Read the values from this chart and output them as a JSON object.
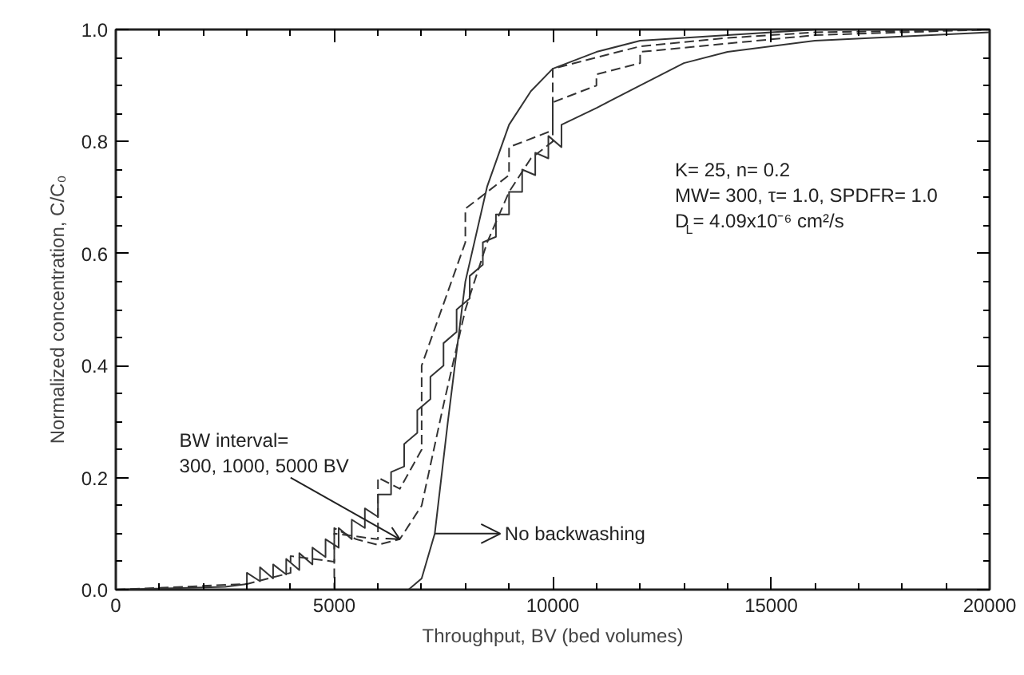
{
  "chart_data": {
    "type": "line",
    "xlabel": "Throughput, BV (bed volumes)",
    "ylabel": "Normalized concentration, C/C₀",
    "xlim": [
      0,
      20000
    ],
    "ylim": [
      0,
      1.0
    ],
    "xticks": [
      0,
      5000,
      10000,
      15000,
      20000
    ],
    "yticks": [
      {
        "value": 0,
        "label": "0.0"
      },
      {
        "value": 0.2,
        "label": "0.2"
      },
      {
        "value": 0.4,
        "label": "0.4"
      },
      {
        "value": 0.6,
        "label": "0.6"
      },
      {
        "value": 0.8,
        "label": "0.8"
      },
      {
        "value": 1.0,
        "label": "1.0"
      }
    ],
    "grid": false,
    "series": [
      {
        "color": "#333333",
        "line_style": "solid",
        "x": [
          0,
          6700,
          7000,
          7300,
          7600,
          8000,
          8500,
          9000,
          9500,
          10000,
          11000,
          12000,
          14000,
          16000,
          20000
        ],
        "values": [
          0,
          0,
          0.02,
          0.1,
          0.3,
          0.55,
          0.72,
          0.83,
          0.89,
          0.93,
          0.96,
          0.98,
          0.99,
          1.0,
          1.0
        ]
      },
      {
        "color": "#333333",
        "line_style": "dashed",
        "x": [
          0,
          5000,
          5000,
          5500,
          6000,
          6500,
          7000,
          7500,
          8000,
          8500,
          9000,
          9500,
          10000,
          10000,
          11000,
          12000,
          14000,
          16000,
          20000
        ],
        "values": [
          0,
          0,
          0.11,
          0.09,
          0.08,
          0.09,
          0.15,
          0.33,
          0.5,
          0.62,
          0.71,
          0.77,
          0.8,
          0.93,
          0.95,
          0.97,
          0.985,
          0.995,
          1.0
        ]
      },
      {
        "color": "#333333",
        "line_style": "dashed",
        "x": [
          0,
          3000,
          4000,
          4000,
          4990,
          5000,
          5000,
          6000,
          6000,
          6500,
          7000,
          7000,
          8000,
          8000,
          9000,
          9000,
          10000,
          10000,
          11000,
          11000,
          12000,
          12000,
          14000,
          16000,
          20000
        ],
        "values": [
          0,
          0.01,
          0.03,
          0.06,
          0.05,
          0.05,
          0.1,
          0.09,
          0.2,
          0.18,
          0.25,
          0.4,
          0.62,
          0.68,
          0.74,
          0.79,
          0.82,
          0.87,
          0.9,
          0.92,
          0.94,
          0.96,
          0.975,
          0.99,
          1.0
        ]
      },
      {
        "color": "#333333",
        "line_style": "solid",
        "x": [
          0,
          2500,
          3000,
          3000,
          3300,
          3300,
          3600,
          3600,
          3900,
          3900,
          4200,
          4200,
          4500,
          4500,
          4800,
          4800,
          5100,
          5100,
          5400,
          5400,
          5700,
          5700,
          6000,
          6000,
          6300,
          6300,
          6600,
          6600,
          6900,
          6900,
          7200,
          7200,
          7500,
          7500,
          7800,
          7800,
          8100,
          8100,
          8400,
          8400,
          8700,
          8700,
          9000,
          9000,
          9300,
          9300,
          9600,
          9600,
          9900,
          9900,
          10200,
          10200,
          11000,
          12000,
          13000,
          14000,
          16000,
          20000
        ],
        "values": [
          0,
          0.005,
          0.01,
          0.03,
          0.015,
          0.04,
          0.02,
          0.045,
          0.027,
          0.055,
          0.035,
          0.065,
          0.045,
          0.075,
          0.058,
          0.09,
          0.075,
          0.11,
          0.09,
          0.125,
          0.11,
          0.145,
          0.13,
          0.17,
          0.17,
          0.21,
          0.22,
          0.26,
          0.28,
          0.32,
          0.34,
          0.38,
          0.4,
          0.44,
          0.46,
          0.5,
          0.52,
          0.56,
          0.58,
          0.62,
          0.63,
          0.67,
          0.67,
          0.71,
          0.71,
          0.75,
          0.74,
          0.78,
          0.77,
          0.81,
          0.79,
          0.83,
          0.86,
          0.9,
          0.94,
          0.96,
          0.98,
          0.995
        ]
      }
    ],
    "annotations": [
      {
        "text": "BW interval=\n300, 1000, 5000 BV",
        "x": 6500,
        "y": 0.09
      },
      {
        "text": "No backwashing",
        "x": 7300,
        "y": 0.1
      },
      "K= 25, n= 0.2",
      "MW= 300, τ= 1.0, SPDFR= 1.0",
      "D$_{L}$= 4.09x10⁻⁶ cm²/s"
    ]
  }
}
